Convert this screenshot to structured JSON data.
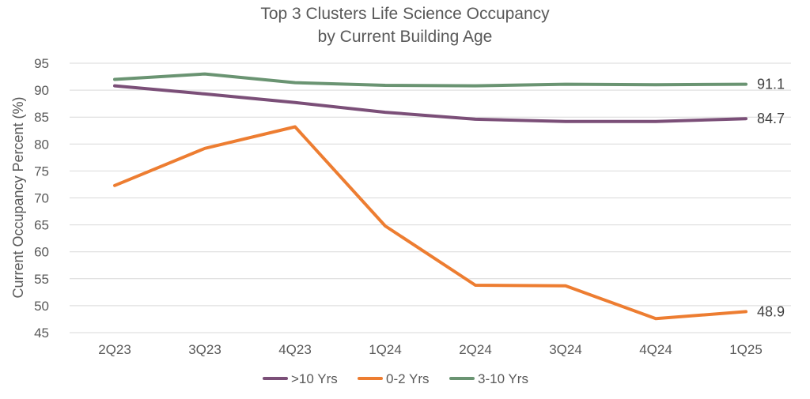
{
  "chart_data": {
    "type": "line",
    "title": "Top 3 Clusters Life Science Occupancy",
    "subtitle": "by Current Building Age",
    "xlabel": "",
    "ylabel": "Current Occupancy Percent (%)",
    "ylim": [
      45,
      95
    ],
    "yticks": [
      45,
      50,
      55,
      60,
      65,
      70,
      75,
      80,
      85,
      90,
      95
    ],
    "grid": true,
    "legend_position": "bottom",
    "categories": [
      "2Q23",
      "3Q23",
      "4Q23",
      "1Q24",
      "2Q24",
      "3Q24",
      "4Q24",
      "1Q25"
    ],
    "series": [
      {
        "name": ">10 Yrs",
        "color": "#7b4f78",
        "values": [
          90.8,
          89.3,
          87.7,
          85.9,
          84.6,
          84.2,
          84.2,
          84.7
        ],
        "end_label": "84.7"
      },
      {
        "name": "0-2 Yrs",
        "color": "#ed7d31",
        "values": [
          72.3,
          79.2,
          83.2,
          64.8,
          53.8,
          53.7,
          47.6,
          48.9
        ],
        "end_label": "48.9"
      },
      {
        "name": "3-10 Yrs",
        "color": "#6a9472",
        "values": [
          92.0,
          93.0,
          91.4,
          90.9,
          90.8,
          91.1,
          91.0,
          91.1
        ],
        "end_label": "91.1"
      }
    ]
  }
}
